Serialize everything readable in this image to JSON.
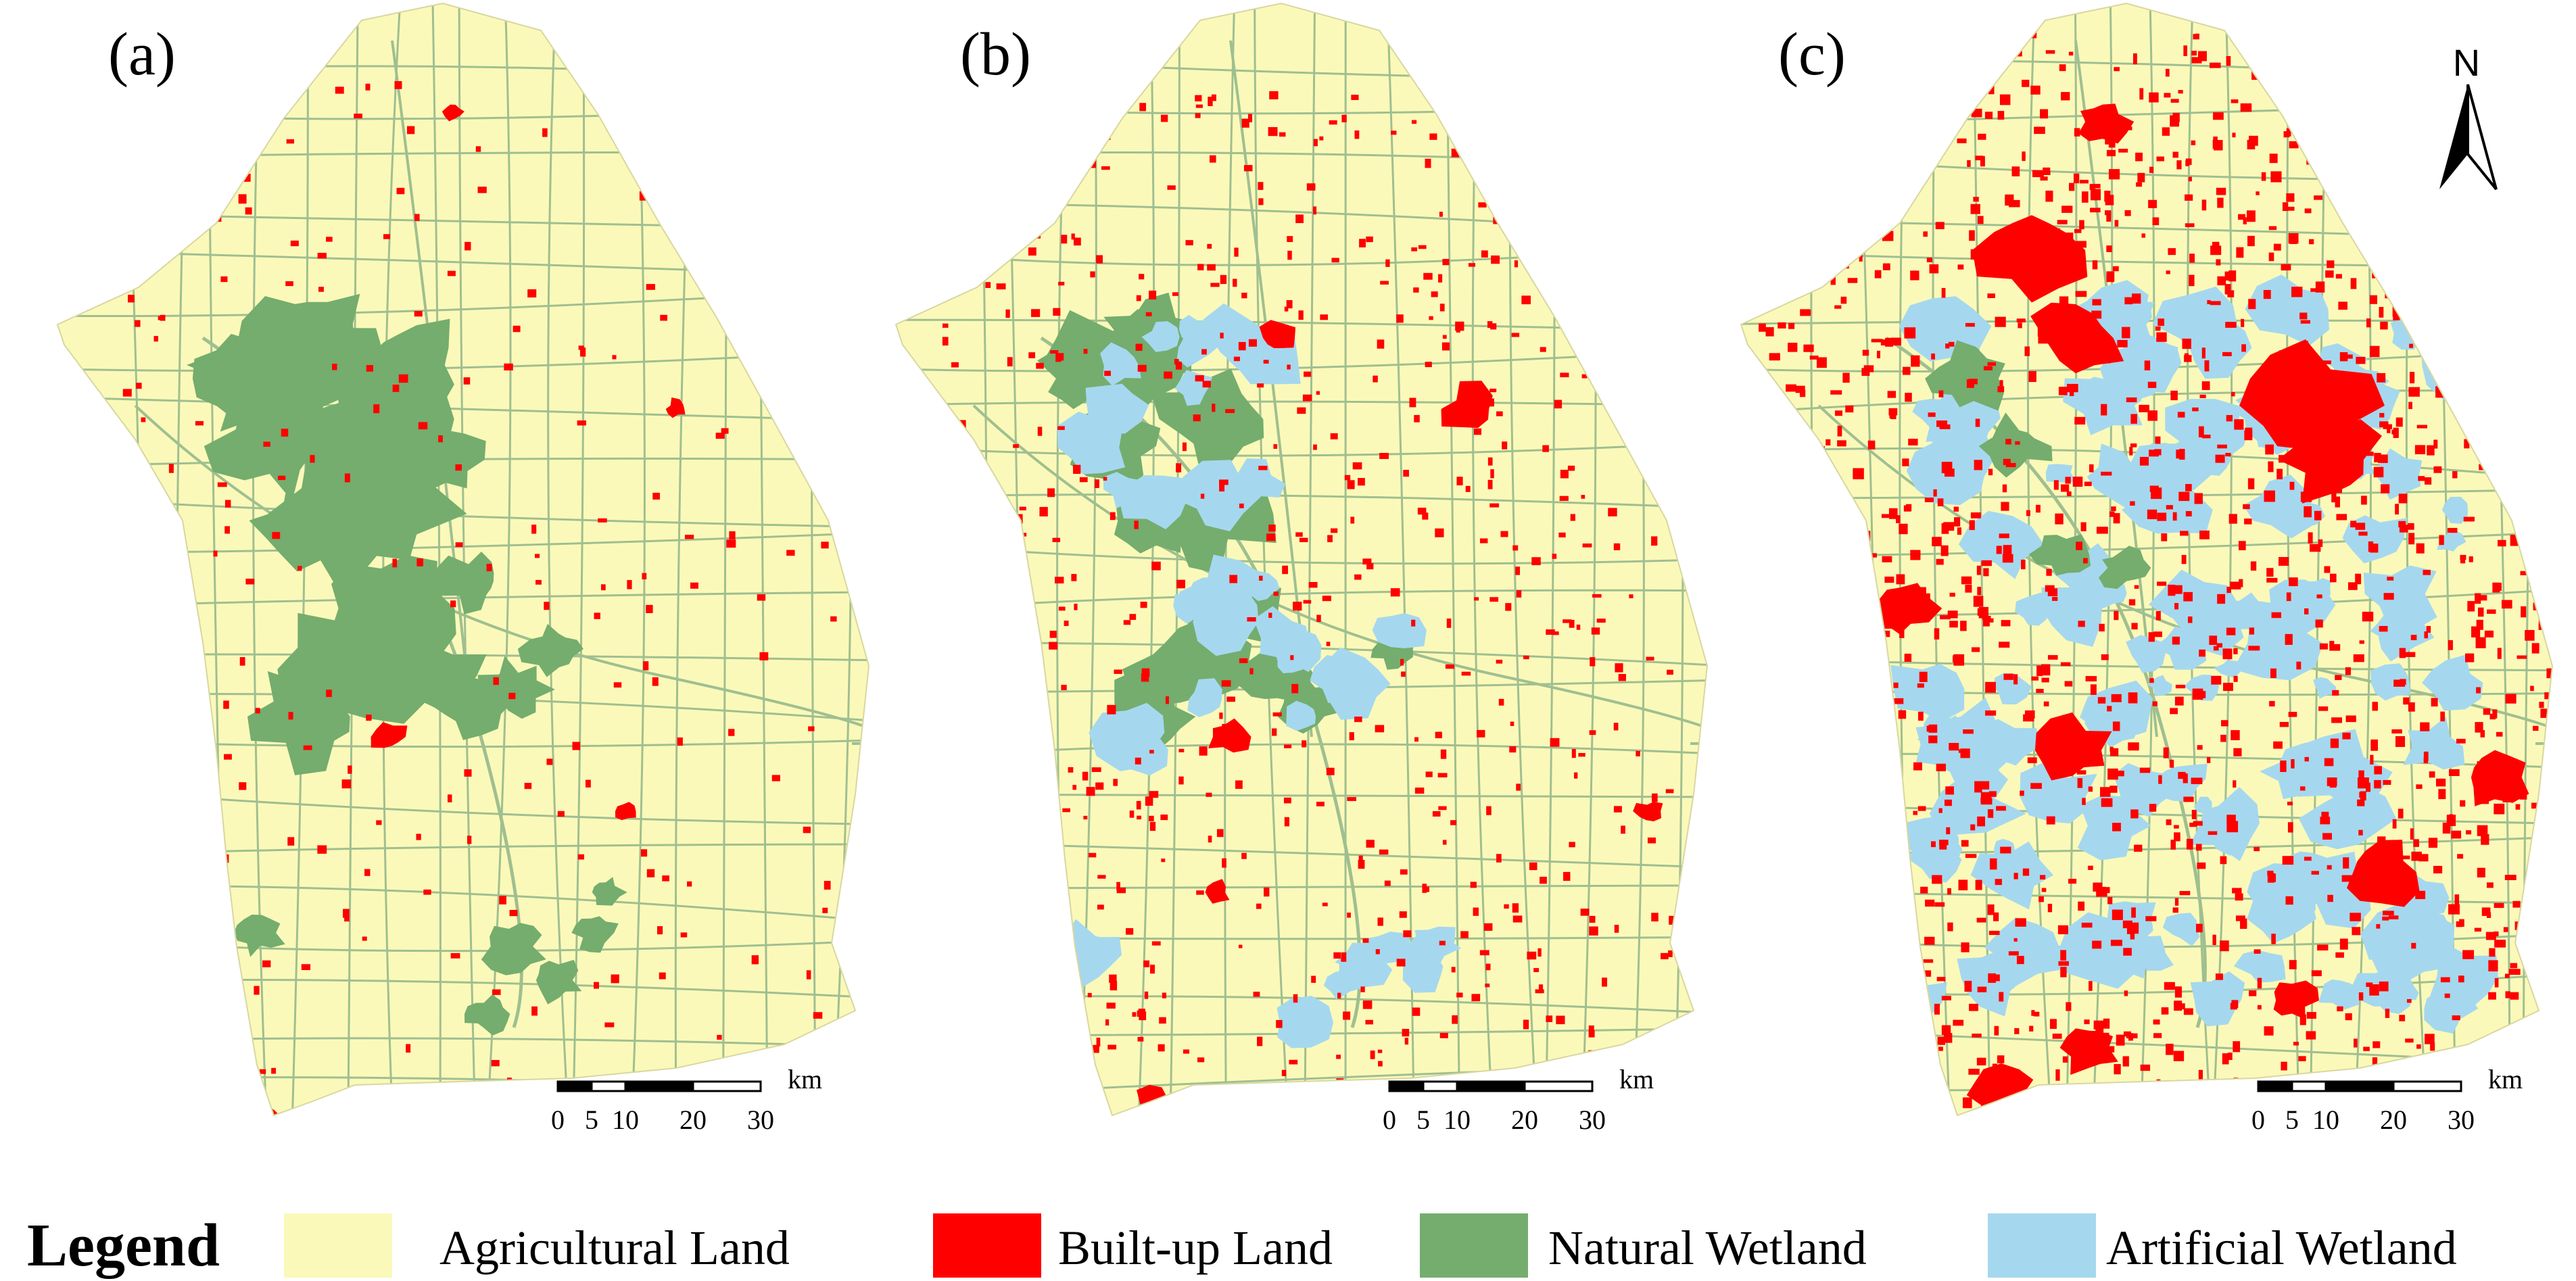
{
  "panels": [
    {
      "label": "(a)",
      "scale_ticks": [
        "0",
        "5",
        "10",
        "20",
        "30"
      ],
      "scale_unit": "km"
    },
    {
      "label": "(b)",
      "scale_ticks": [
        "0",
        "5",
        "10",
        "20",
        "30"
      ],
      "scale_unit": "km"
    },
    {
      "label": "(c)",
      "scale_ticks": [
        "0",
        "5",
        "10",
        "20",
        "30"
      ],
      "scale_unit": "km"
    }
  ],
  "north_arrow": {
    "label": "N",
    "icon": "north-arrow-icon"
  },
  "legend": {
    "title": "Legend",
    "items": [
      {
        "label": "Agricultural Land",
        "color": "#fbf9b9"
      },
      {
        "label": "Built-up Land",
        "color": "#ff0000"
      },
      {
        "label": "Natural Wetland",
        "color": "#74ad6e"
      },
      {
        "label": "Artificial Wetland",
        "color": "#a5d8ee"
      }
    ]
  },
  "colors": {
    "agricultural": "#fbf9b9",
    "builtup": "#ff0000",
    "natural_wetland": "#74ad6e",
    "artificial_wetland": "#a5d8ee",
    "road": "#8fb58a"
  }
}
